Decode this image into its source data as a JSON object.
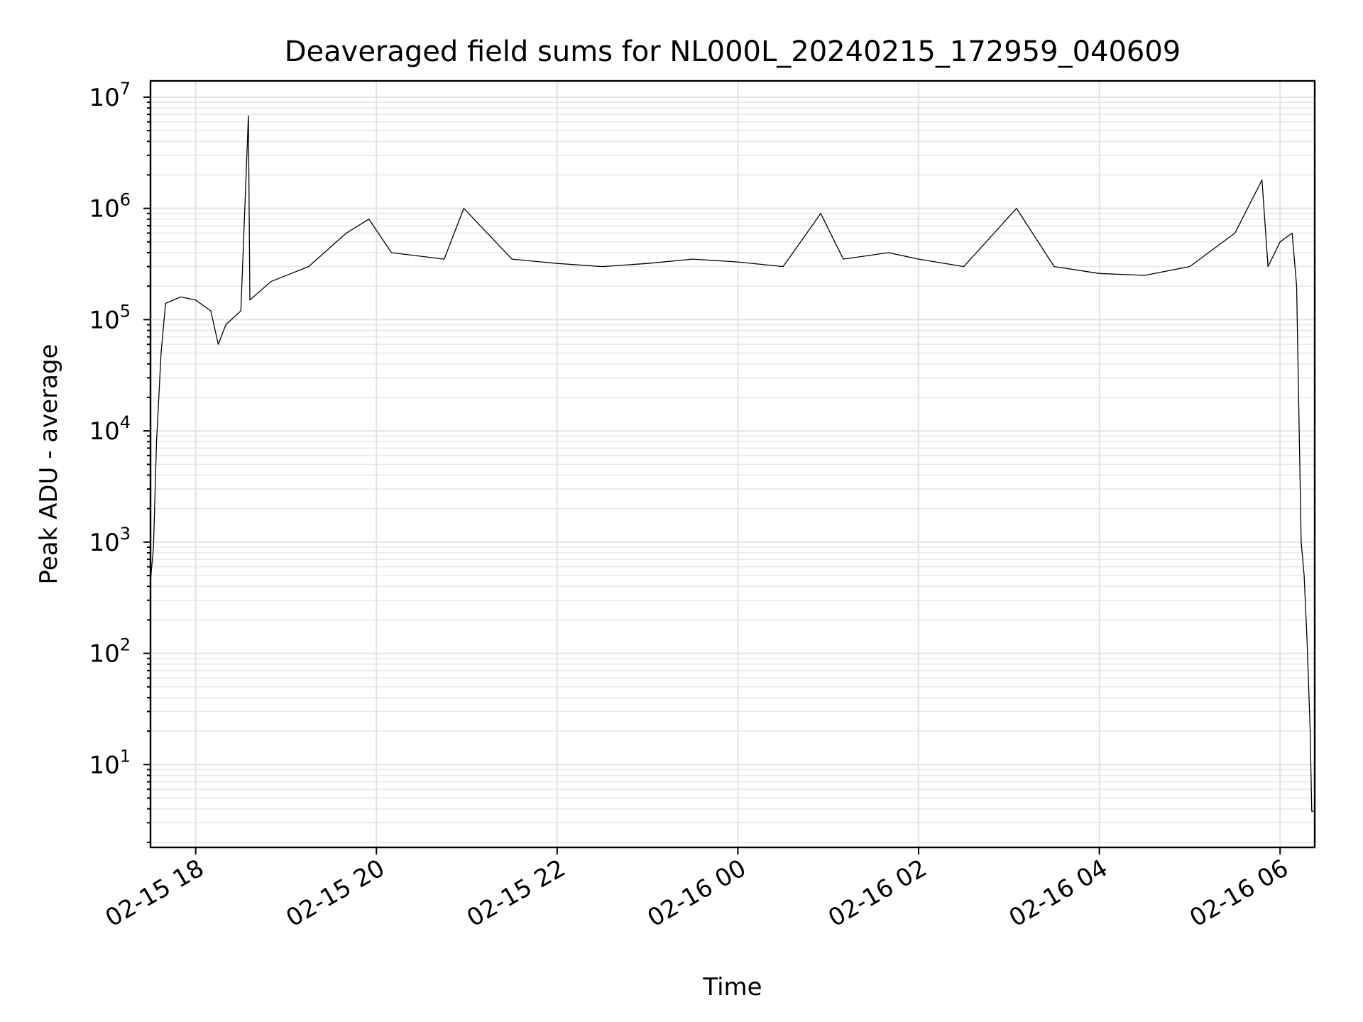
{
  "chart_data": {
    "type": "line",
    "title": "Deaveraged field sums for NL000L_20240215_172959_040609",
    "xlabel": "Time",
    "ylabel": "Peak ADU - average",
    "yscale": "log",
    "ylim": [
      1.8,
      14000000
    ],
    "xlim": [
      "2024-02-15 17:30",
      "2024-02-16 06:23"
    ],
    "x_ticks": [
      "02-15 18",
      "02-15 20",
      "02-15 22",
      "02-16 00",
      "02-16 02",
      "02-16 04",
      "02-16 06"
    ],
    "y_ticks": [
      "10^1",
      "10^2",
      "10^3",
      "10^4",
      "10^5",
      "10^6",
      "10^7"
    ],
    "grid": true,
    "legend": "none",
    "series": [
      {
        "color": "#000000",
        "points": [
          [
            "2024-02-15 17:30",
            450
          ],
          [
            "2024-02-15 17:32",
            900
          ],
          [
            "2024-02-15 17:34",
            8000
          ],
          [
            "2024-02-15 17:37",
            50000
          ],
          [
            "2024-02-15 17:40",
            140000
          ],
          [
            "2024-02-15 17:50",
            160000
          ],
          [
            "2024-02-15 18:00",
            150000
          ],
          [
            "2024-02-15 18:10",
            120000
          ],
          [
            "2024-02-15 18:15",
            60000
          ],
          [
            "2024-02-15 18:20",
            90000
          ],
          [
            "2024-02-15 18:30",
            120000
          ],
          [
            "2024-02-15 18:35",
            6800000
          ],
          [
            "2024-02-15 18:36",
            150000
          ],
          [
            "2024-02-15 18:50",
            220000
          ],
          [
            "2024-02-15 19:15",
            300000
          ],
          [
            "2024-02-15 19:40",
            600000
          ],
          [
            "2024-02-15 19:55",
            800000
          ],
          [
            "2024-02-15 20:10",
            400000
          ],
          [
            "2024-02-15 20:45",
            350000
          ],
          [
            "2024-02-15 20:58",
            1000000
          ],
          [
            "2024-02-15 21:30",
            350000
          ],
          [
            "2024-02-15 22:00",
            320000
          ],
          [
            "2024-02-15 22:30",
            300000
          ],
          [
            "2024-02-15 23:00",
            320000
          ],
          [
            "2024-02-15 23:30",
            350000
          ],
          [
            "2024-02-16 00:00",
            330000
          ],
          [
            "2024-02-16 00:30",
            300000
          ],
          [
            "2024-02-16 00:55",
            900000
          ],
          [
            "2024-02-16 01:10",
            350000
          ],
          [
            "2024-02-16 01:40",
            400000
          ],
          [
            "2024-02-16 02:00",
            350000
          ],
          [
            "2024-02-16 02:30",
            300000
          ],
          [
            "2024-02-16 03:05",
            1000000
          ],
          [
            "2024-02-16 03:30",
            300000
          ],
          [
            "2024-02-16 04:00",
            260000
          ],
          [
            "2024-02-16 04:30",
            250000
          ],
          [
            "2024-02-16 05:00",
            300000
          ],
          [
            "2024-02-16 05:30",
            600000
          ],
          [
            "2024-02-16 05:48",
            1800000
          ],
          [
            "2024-02-16 05:52",
            300000
          ],
          [
            "2024-02-16 06:00",
            500000
          ],
          [
            "2024-02-16 06:08",
            600000
          ],
          [
            "2024-02-16 06:11",
            200000
          ],
          [
            "2024-02-16 06:14",
            1000
          ],
          [
            "2024-02-16 06:16",
            500
          ],
          [
            "2024-02-16 06:18",
            120
          ],
          [
            "2024-02-16 06:20",
            20
          ],
          [
            "2024-02-16 06:21",
            3.8
          ],
          [
            "2024-02-16 06:23",
            3.8
          ]
        ]
      }
    ]
  }
}
